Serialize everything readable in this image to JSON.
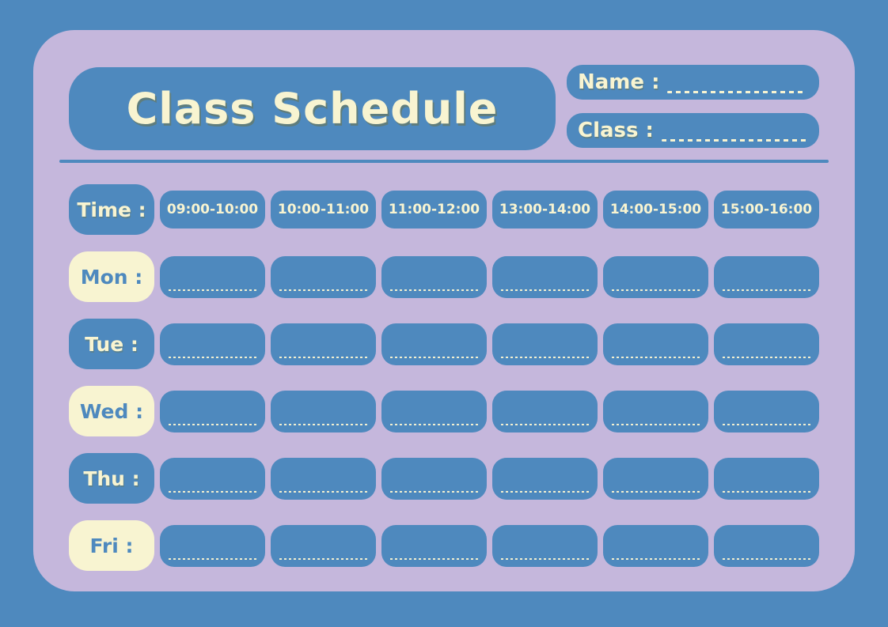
{
  "window": {
    "title": "Class Schedule"
  },
  "header": {
    "title": "Class Schedule",
    "name_label": "Name :",
    "name_value": "",
    "class_label": "Class :",
    "class_value": ""
  },
  "schedule": {
    "time_label": "Time :",
    "time_slots": [
      "09:00-10:00",
      "10:00-11:00",
      "11:00-12:00",
      "13:00-14:00",
      "14:00-15:00",
      "15:00-16:00"
    ],
    "days": [
      {
        "label": "Mon :",
        "style": "cream",
        "entries": [
          "",
          "",
          "",
          "",
          "",
          ""
        ]
      },
      {
        "label": "Tue :",
        "style": "blue",
        "entries": [
          "",
          "",
          "",
          "",
          "",
          ""
        ]
      },
      {
        "label": "Wed :",
        "style": "cream",
        "entries": [
          "",
          "",
          "",
          "",
          "",
          ""
        ]
      },
      {
        "label": "Thu :",
        "style": "blue",
        "entries": [
          "",
          "",
          "",
          "",
          "",
          ""
        ]
      },
      {
        "label": "Fri :",
        "style": "cream",
        "entries": [
          "",
          "",
          "",
          "",
          "",
          ""
        ]
      }
    ]
  },
  "colors": {
    "background_blue": "#4E89BE",
    "panel_lavender": "#C5B7DC",
    "box_blue": "#4E89BE",
    "cream": "#F8F4D1",
    "title_shadow_olive": "#6E7346"
  }
}
